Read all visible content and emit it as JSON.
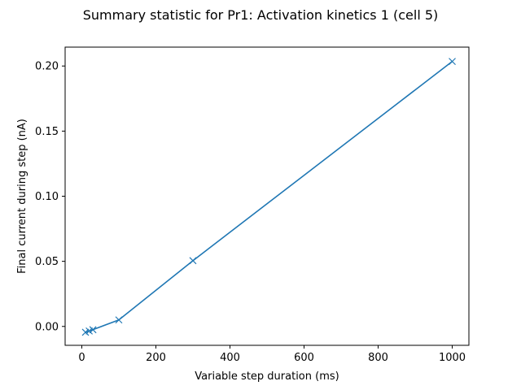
{
  "chart_data": {
    "type": "line",
    "title": "Summary statistic for Pr1: Activation kinetics 1 (cell 5)",
    "xlabel": "Variable step duration (ms)",
    "ylabel": "Final current during step (nA)",
    "xlim": [
      -45,
      1045
    ],
    "ylim": [
      -0.0145,
      0.2145
    ],
    "xticks": [
      0,
      200,
      400,
      600,
      800,
      1000
    ],
    "yticks": [
      0.0,
      0.05,
      0.1,
      0.15,
      0.2
    ],
    "xtick_labels": [
      "0",
      "200",
      "400",
      "600",
      "800",
      "1000"
    ],
    "ytick_labels": [
      "0.00",
      "0.05",
      "0.10",
      "0.15",
      "0.20"
    ],
    "grid": false,
    "marker": "x",
    "color": "#1f77b4",
    "series": [
      {
        "x": [
          10,
          20,
          30,
          100,
          300,
          1000
        ],
        "y": [
          -0.0045,
          -0.0035,
          -0.0025,
          0.005,
          0.0505,
          0.2035
        ]
      }
    ]
  }
}
